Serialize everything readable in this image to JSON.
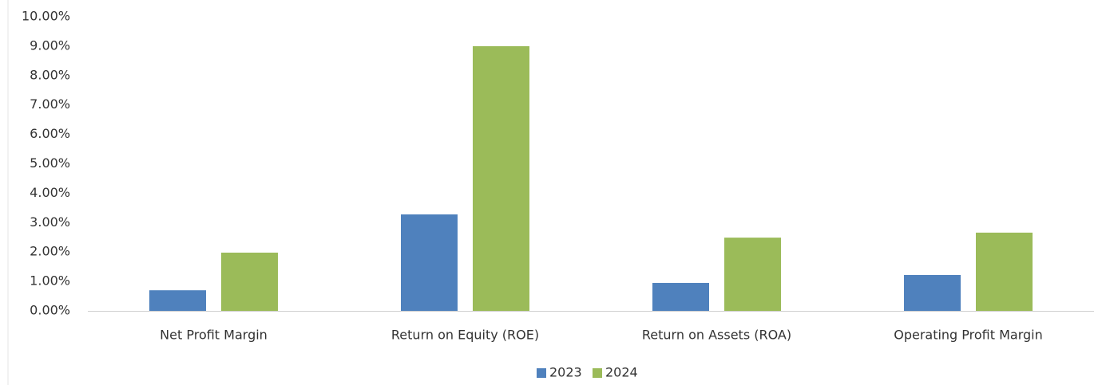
{
  "chart_data": {
    "type": "bar",
    "categories": [
      "Net Profit Margin",
      "Return on Equity (ROE)",
      "Return on Assets (ROA)",
      "Operating Profit Margin"
    ],
    "series": [
      {
        "name": "2023",
        "color": "#4f81bd",
        "values": [
          0.7,
          3.28,
          0.95,
          1.22
        ]
      },
      {
        "name": "2024",
        "color": "#9bbb59",
        "values": [
          1.98,
          9.0,
          2.49,
          2.66
        ]
      }
    ],
    "ylim": [
      0,
      10
    ],
    "yticks": [
      {
        "value": 0,
        "label": "0.00%"
      },
      {
        "value": 1,
        "label": "1.00%"
      },
      {
        "value": 2,
        "label": "2.00%"
      },
      {
        "value": 3,
        "label": "3.00%"
      },
      {
        "value": 4,
        "label": "4.00%"
      },
      {
        "value": 5,
        "label": "5.00%"
      },
      {
        "value": 6,
        "label": "6.00%"
      },
      {
        "value": 7,
        "label": "7.00%"
      },
      {
        "value": 8,
        "label": "8.00%"
      },
      {
        "value": 9,
        "label": "9.00%"
      },
      {
        "value": 10,
        "label": "10.00%"
      }
    ],
    "grid": false,
    "legend": "bottom"
  }
}
